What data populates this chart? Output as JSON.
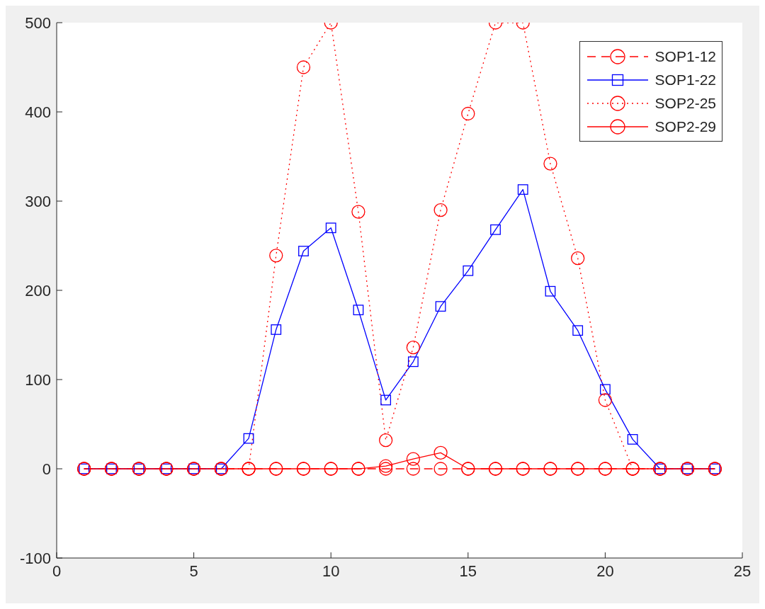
{
  "chart_data": {
    "type": "line",
    "x": [
      1,
      2,
      3,
      4,
      5,
      6,
      7,
      8,
      9,
      10,
      11,
      12,
      13,
      14,
      15,
      16,
      17,
      18,
      19,
      20,
      21,
      22,
      23,
      24
    ],
    "series": [
      {
        "name": "SOP1-12",
        "color": "#ff0000",
        "line_style": "dashed",
        "marker": "circle",
        "values": [
          0,
          0,
          0,
          0,
          0,
          0,
          0,
          0,
          0,
          0,
          0,
          0,
          0,
          0,
          0,
          0,
          0,
          0,
          0,
          0,
          0,
          0,
          0,
          0
        ]
      },
      {
        "name": "SOP1-22",
        "color": "#0000ff",
        "line_style": "solid",
        "marker": "square",
        "values": [
          0,
          0,
          0,
          0,
          0,
          0,
          34,
          156,
          244,
          270,
          178,
          77,
          120,
          182,
          222,
          268,
          313,
          199,
          155,
          89,
          33,
          0,
          0,
          0
        ]
      },
      {
        "name": "SOP2-25",
        "color": "#ff0000",
        "line_style": "dotted",
        "marker": "circle",
        "values": [
          0,
          0,
          0,
          0,
          0,
          0,
          0,
          239,
          450,
          500,
          288,
          32,
          136,
          290,
          398,
          500,
          500,
          342,
          236,
          77,
          0,
          0,
          0,
          0
        ]
      },
      {
        "name": "SOP2-29",
        "color": "#ff0000",
        "line_style": "solid",
        "marker": "circle",
        "values": [
          0,
          0,
          0,
          0,
          0,
          0,
          0,
          0,
          0,
          0,
          0,
          3,
          11,
          18,
          0,
          0,
          0,
          0,
          0,
          0,
          0,
          0,
          0,
          0
        ]
      }
    ],
    "xlim": [
      0,
      25
    ],
    "xticks": [
      0,
      5,
      10,
      15,
      20,
      25
    ],
    "ylim": [
      -100,
      500
    ],
    "yticks": [
      -100,
      0,
      100,
      200,
      300,
      400,
      500
    ],
    "grid": false,
    "legend": "top right"
  }
}
